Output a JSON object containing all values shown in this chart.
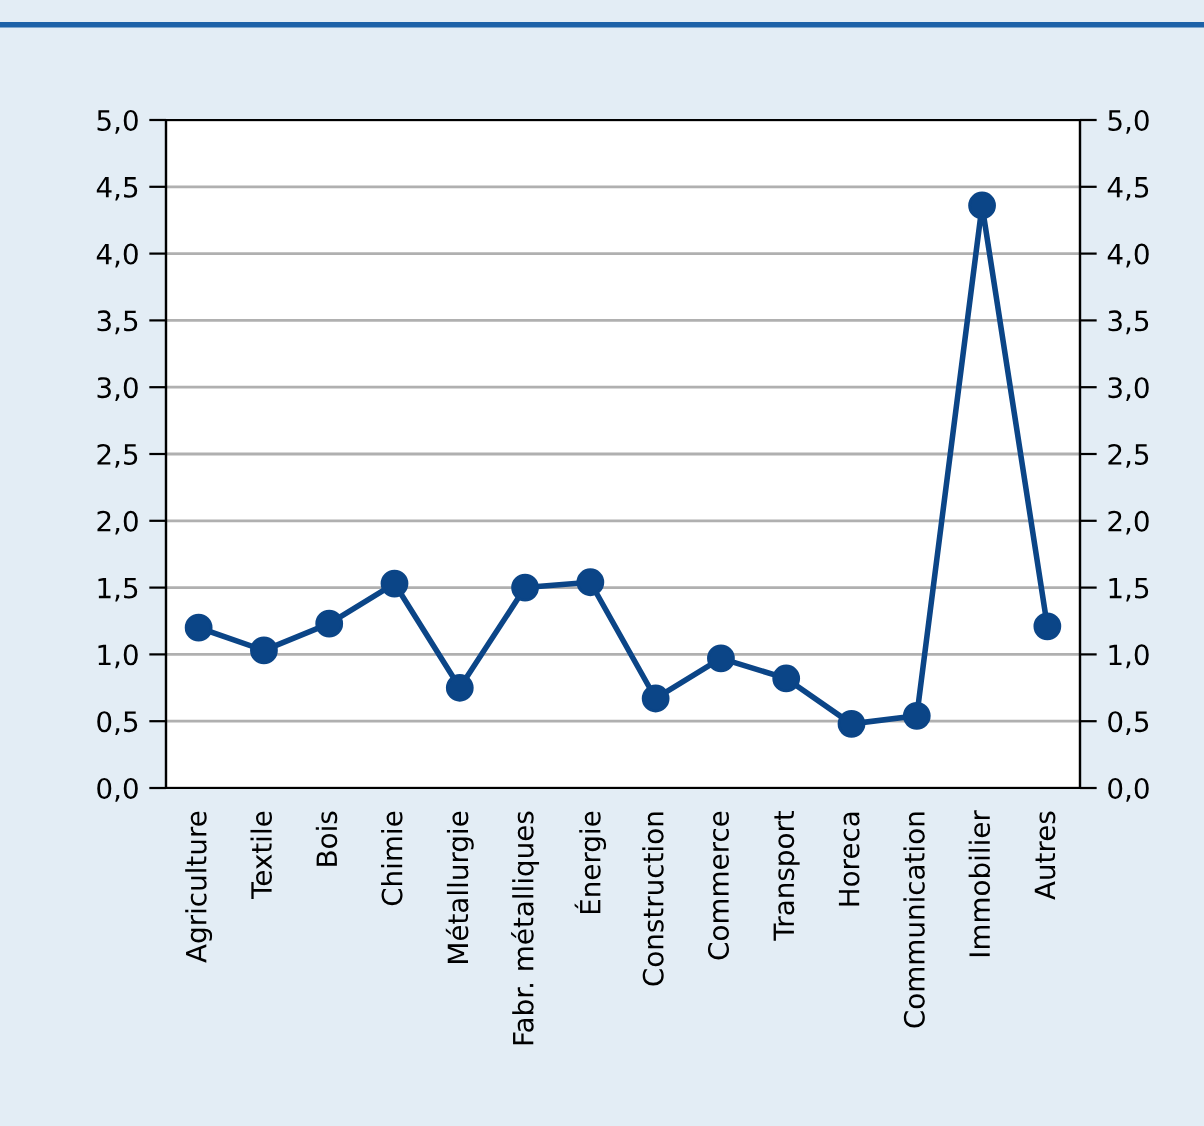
{
  "chart_data": {
    "type": "line",
    "categories": [
      "Agriculture",
      "Textile",
      "Bois",
      "Chimie",
      "Métallurgie",
      "Fabr. métalliques",
      "Énergie",
      "Construction",
      "Commerce",
      "Transport",
      "Horeca",
      "Communication",
      "Immobilier",
      "Autres"
    ],
    "series": [
      {
        "color": "#0b4587",
        "values": [
          1.2,
          1.03,
          1.23,
          1.53,
          0.75,
          1.5,
          1.54,
          0.67,
          0.97,
          0.82,
          0.48,
          0.54,
          4.36,
          1.21
        ]
      }
    ],
    "ylim": [
      0,
      5
    ],
    "yticks": [
      {
        "value": 0,
        "label": "0,0"
      },
      {
        "value": 0.5,
        "label": "0,5"
      },
      {
        "value": 1,
        "label": "1,0"
      },
      {
        "value": 1.5,
        "label": "1,5"
      },
      {
        "value": 2,
        "label": "2,0"
      },
      {
        "value": 2.5,
        "label": "2,5"
      },
      {
        "value": 3,
        "label": "3,0"
      },
      {
        "value": 3.5,
        "label": "3,5"
      },
      {
        "value": 4,
        "label": "4,0"
      },
      {
        "value": 4.5,
        "label": "4,5"
      },
      {
        "value": 5,
        "label": "5,0"
      }
    ],
    "y2lim": [
      0,
      5
    ],
    "y2ticks": [
      {
        "value": 0,
        "label": "0,0"
      },
      {
        "value": 0.5,
        "label": "0,5"
      },
      {
        "value": 1,
        "label": "1,0"
      },
      {
        "value": 1.5,
        "label": "1,5"
      },
      {
        "value": 2,
        "label": "2,0"
      },
      {
        "value": 2.5,
        "label": "2,5"
      },
      {
        "value": 3,
        "label": "3,0"
      },
      {
        "value": 3.5,
        "label": "3,5"
      },
      {
        "value": 4,
        "label": "4,0"
      },
      {
        "value": 4.5,
        "label": "4,5"
      },
      {
        "value": 5,
        "label": "5,0"
      }
    ],
    "grid": "y",
    "marker": "circle",
    "line_style": "solid"
  }
}
